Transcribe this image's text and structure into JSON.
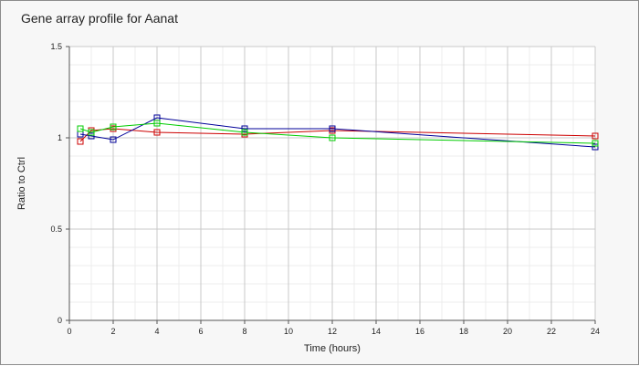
{
  "chart_data": {
    "type": "line",
    "title": "Gene array profile for Aanat",
    "xlabel": "Time (hours)",
    "ylabel": "Ratio to Ctrl",
    "xlim": [
      0,
      24
    ],
    "ylim": [
      0,
      1.5
    ],
    "xticks": [
      0,
      2,
      4,
      6,
      8,
      10,
      12,
      14,
      16,
      18,
      20,
      22,
      24
    ],
    "yticks": [
      0,
      0.5,
      1,
      1.5
    ],
    "ytick_labels": [
      "0",
      "0.5",
      "1",
      "1.5"
    ],
    "grid": true,
    "marker": "square",
    "series": [
      {
        "color": "#cc0000",
        "x": [
          0.5,
          1,
          2,
          4,
          8,
          12,
          24
        ],
        "y": [
          0.98,
          1.04,
          1.05,
          1.03,
          1.02,
          1.04,
          1.01
        ]
      },
      {
        "color": "#000099",
        "x": [
          0.5,
          1,
          2,
          4,
          8,
          12,
          24
        ],
        "y": [
          1.02,
          1.01,
          0.99,
          1.11,
          1.05,
          1.05,
          0.95
        ]
      },
      {
        "color": "#00cc00",
        "x": [
          0.5,
          1,
          2,
          4,
          8,
          12,
          24
        ],
        "y": [
          1.05,
          1.03,
          1.06,
          1.08,
          1.03,
          1.0,
          0.97
        ]
      }
    ]
  }
}
